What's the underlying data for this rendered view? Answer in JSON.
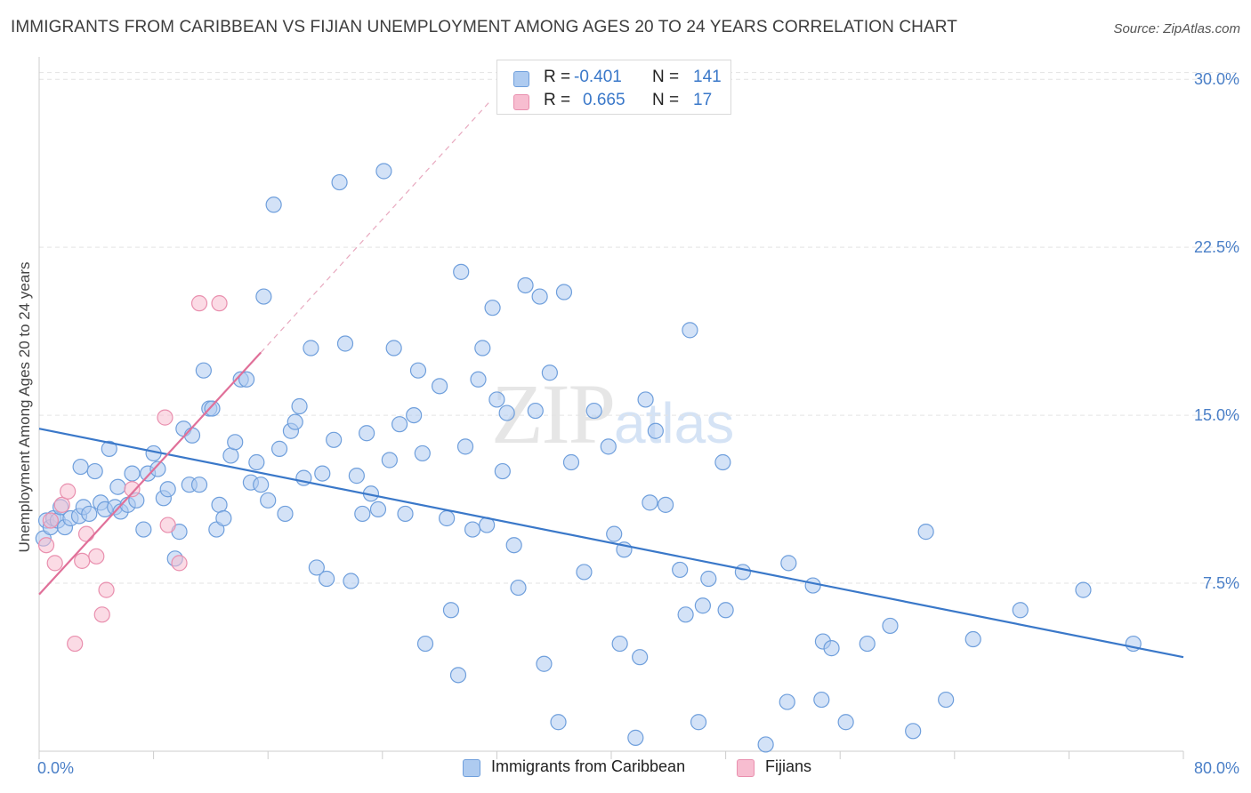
{
  "title": "IMMIGRANTS FROM CARIBBEAN VS FIJIAN UNEMPLOYMENT AMONG AGES 20 TO 24 YEARS CORRELATION CHART",
  "source": "Source: ZipAtlas.com",
  "watermark": {
    "zip": "ZIP",
    "atlas": "atlas"
  },
  "stats": {
    "rows": [
      {
        "r_label": "R =",
        "r_value": "-0.401",
        "n_label": "N =",
        "n_value": "141",
        "color": "#aecbf0",
        "border": "#6f9fdc"
      },
      {
        "r_label": "R =",
        "r_value": "0.665",
        "n_label": "N =",
        "n_value": "17",
        "color": "#f7bdd0",
        "border": "#e98fae"
      }
    ]
  },
  "chart_data": {
    "type": "scatter",
    "ylabel": "Unemployment Among Ages 20 to 24 years",
    "xlim": [
      0,
      80
    ],
    "ylim": [
      0,
      31
    ],
    "x_tick_labels": [
      "0.0%",
      "80.0%"
    ],
    "y_ticks": [
      7.5,
      15.0,
      22.5,
      30.0
    ],
    "y_tick_labels": [
      "7.5%",
      "15.0%",
      "22.5%",
      "30.0%"
    ],
    "grid": "horizontal dashed",
    "legend_position": "bottom-center",
    "colors": {
      "caribbean": "#3a78c9",
      "fijian": "#e07099",
      "axis_text": "#4a7fc7"
    },
    "series": [
      {
        "name": "Immigrants from Caribbean",
        "fill": "#aecbf0",
        "stroke": "#6f9fdc",
        "trend": {
          "x": [
            0,
            80
          ],
          "y": [
            14.4,
            4.2
          ]
        },
        "points": [
          [
            0.3,
            9.5
          ],
          [
            0.5,
            10.3
          ],
          [
            0.8,
            10.0
          ],
          [
            1.0,
            10.4
          ],
          [
            1.3,
            10.3
          ],
          [
            1.5,
            10.9
          ],
          [
            1.8,
            10.0
          ],
          [
            2.2,
            10.4
          ],
          [
            2.8,
            10.5
          ],
          [
            2.9,
            12.7
          ],
          [
            3.1,
            10.9
          ],
          [
            3.5,
            10.6
          ],
          [
            3.9,
            12.5
          ],
          [
            4.3,
            11.1
          ],
          [
            4.6,
            10.8
          ],
          [
            4.9,
            13.5
          ],
          [
            5.3,
            10.9
          ],
          [
            5.5,
            11.8
          ],
          [
            5.7,
            10.7
          ],
          [
            6.2,
            11.0
          ],
          [
            6.5,
            12.4
          ],
          [
            6.8,
            11.2
          ],
          [
            7.3,
            9.9
          ],
          [
            7.6,
            12.4
          ],
          [
            8.0,
            13.3
          ],
          [
            8.3,
            12.6
          ],
          [
            8.7,
            11.3
          ],
          [
            9.0,
            11.7
          ],
          [
            9.5,
            8.6
          ],
          [
            9.8,
            9.8
          ],
          [
            10.1,
            14.4
          ],
          [
            10.5,
            11.9
          ],
          [
            10.7,
            14.1
          ],
          [
            11.2,
            11.9
          ],
          [
            11.5,
            17.0
          ],
          [
            11.9,
            15.3
          ],
          [
            12.1,
            15.3
          ],
          [
            12.4,
            9.9
          ],
          [
            12.6,
            11.0
          ],
          [
            12.9,
            10.4
          ],
          [
            13.4,
            13.2
          ],
          [
            13.7,
            13.8
          ],
          [
            14.1,
            16.6
          ],
          [
            14.5,
            16.6
          ],
          [
            14.8,
            12.0
          ],
          [
            15.2,
            12.9
          ],
          [
            15.5,
            11.9
          ],
          [
            15.7,
            20.3
          ],
          [
            16.0,
            11.2
          ],
          [
            16.4,
            24.4
          ],
          [
            16.8,
            13.5
          ],
          [
            17.2,
            10.6
          ],
          [
            17.6,
            14.3
          ],
          [
            17.9,
            14.7
          ],
          [
            18.2,
            15.4
          ],
          [
            18.5,
            12.2
          ],
          [
            19.0,
            18.0
          ],
          [
            19.4,
            8.2
          ],
          [
            19.8,
            12.4
          ],
          [
            20.1,
            7.7
          ],
          [
            20.6,
            13.9
          ],
          [
            21.0,
            25.4
          ],
          [
            21.4,
            18.2
          ],
          [
            21.8,
            7.6
          ],
          [
            22.2,
            12.3
          ],
          [
            22.6,
            10.6
          ],
          [
            22.9,
            14.2
          ],
          [
            23.2,
            11.5
          ],
          [
            23.7,
            10.8
          ],
          [
            24.1,
            25.9
          ],
          [
            24.5,
            13.0
          ],
          [
            24.8,
            18.0
          ],
          [
            25.2,
            14.6
          ],
          [
            25.6,
            10.6
          ],
          [
            26.2,
            15.0
          ],
          [
            26.5,
            17.0
          ],
          [
            26.8,
            13.3
          ],
          [
            27.0,
            4.8
          ],
          [
            28.0,
            16.3
          ],
          [
            28.5,
            10.4
          ],
          [
            28.8,
            6.3
          ],
          [
            29.3,
            3.4
          ],
          [
            29.5,
            21.4
          ],
          [
            29.8,
            13.6
          ],
          [
            30.3,
            9.9
          ],
          [
            30.7,
            16.6
          ],
          [
            31.0,
            18.0
          ],
          [
            31.3,
            10.1
          ],
          [
            31.7,
            19.8
          ],
          [
            32.0,
            15.7
          ],
          [
            32.4,
            12.5
          ],
          [
            32.7,
            15.1
          ],
          [
            33.2,
            9.2
          ],
          [
            33.5,
            7.3
          ],
          [
            34.0,
            20.8
          ],
          [
            34.7,
            15.2
          ],
          [
            35.0,
            20.3
          ],
          [
            35.3,
            3.9
          ],
          [
            35.7,
            16.9
          ],
          [
            36.3,
            1.3
          ],
          [
            36.7,
            20.5
          ],
          [
            37.2,
            12.9
          ],
          [
            38.1,
            8.0
          ],
          [
            38.8,
            15.2
          ],
          [
            39.8,
            13.6
          ],
          [
            40.2,
            9.7
          ],
          [
            40.6,
            4.8
          ],
          [
            40.9,
            9.0
          ],
          [
            41.7,
            0.6
          ],
          [
            42.0,
            4.2
          ],
          [
            42.4,
            15.7
          ],
          [
            42.7,
            11.1
          ],
          [
            43.1,
            14.3
          ],
          [
            43.8,
            11.0
          ],
          [
            44.8,
            8.1
          ],
          [
            45.2,
            6.1
          ],
          [
            45.5,
            18.8
          ],
          [
            46.1,
            1.3
          ],
          [
            46.4,
            6.5
          ],
          [
            46.8,
            7.7
          ],
          [
            47.8,
            12.9
          ],
          [
            48.0,
            6.3
          ],
          [
            49.2,
            8.0
          ],
          [
            50.8,
            0.3
          ],
          [
            52.3,
            2.2
          ],
          [
            52.4,
            8.4
          ],
          [
            54.1,
            7.4
          ],
          [
            54.7,
            2.3
          ],
          [
            54.8,
            4.9
          ],
          [
            55.4,
            4.6
          ],
          [
            56.4,
            1.3
          ],
          [
            57.9,
            4.8
          ],
          [
            59.5,
            5.6
          ],
          [
            61.1,
            0.9
          ],
          [
            62.0,
            9.8
          ],
          [
            63.4,
            2.3
          ],
          [
            65.3,
            5.0
          ],
          [
            68.6,
            6.3
          ],
          [
            73.0,
            7.2
          ],
          [
            76.5,
            4.8
          ]
        ]
      },
      {
        "name": "Fijians",
        "fill": "#f7bdd0",
        "stroke": "#e98fae",
        "trend": {
          "x": [
            0,
            15.5
          ],
          "y": [
            7.0,
            17.8
          ]
        },
        "trend_dashed": {
          "x": [
            15.5,
            31.5
          ],
          "y": [
            17.8,
            29.0
          ]
        },
        "points": [
          [
            0.5,
            9.2
          ],
          [
            1.1,
            8.4
          ],
          [
            1.6,
            11.0
          ],
          [
            2.0,
            11.6
          ],
          [
            2.5,
            4.8
          ],
          [
            3.0,
            8.5
          ],
          [
            3.3,
            9.7
          ],
          [
            4.0,
            8.7
          ],
          [
            4.4,
            6.1
          ],
          [
            4.7,
            7.2
          ],
          [
            6.5,
            11.7
          ],
          [
            8.8,
            14.9
          ],
          [
            9.0,
            10.1
          ],
          [
            9.8,
            8.4
          ],
          [
            11.2,
            20.0
          ],
          [
            12.6,
            20.0
          ],
          [
            0.8,
            10.3
          ]
        ]
      }
    ]
  }
}
